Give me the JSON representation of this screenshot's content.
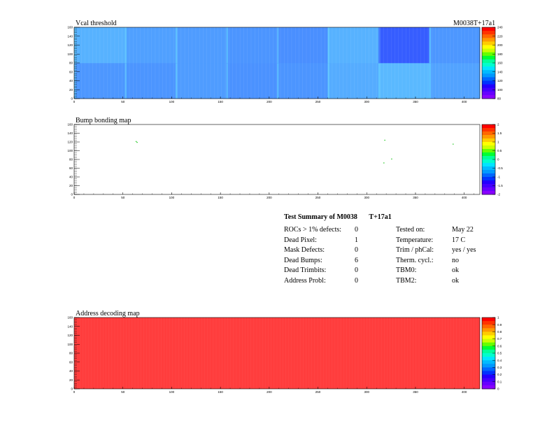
{
  "panels": [
    {
      "title": "Vcal threshold",
      "module_label": "M0038T+17a1",
      "chart_data": {
        "type": "heatmap",
        "x_range": [
          0,
          416
        ],
        "y_range": [
          0,
          160
        ],
        "x_ticks": [
          "0",
          "50",
          "100",
          "150",
          "200",
          "250",
          "300",
          "350",
          "400"
        ],
        "y_ticks": [
          "0",
          "20",
          "40",
          "60",
          "80",
          "100",
          "120",
          "140",
          "160"
        ],
        "z_range": [
          80,
          240
        ],
        "z_ticks": [
          "80",
          "100",
          "120",
          "140",
          "160",
          "180",
          "200",
          "220",
          "240"
        ],
        "roc_mean_top": [
          150,
          138,
          135,
          130,
          126,
          150,
          92,
          132
        ],
        "roc_mean_bottom": [
          132,
          130,
          135,
          128,
          130,
          146,
          155,
          140
        ],
        "colors": {
          "low": "#2f4bff",
          "high": "#60c8ff"
        }
      }
    },
    {
      "title": "Bump bonding map",
      "chart_data": {
        "type": "heatmap",
        "x_range": [
          0,
          416
        ],
        "y_range": [
          0,
          160
        ],
        "x_ticks": [
          "0",
          "50",
          "100",
          "150",
          "200",
          "250",
          "300",
          "350",
          "400"
        ],
        "y_ticks": [
          "0",
          "20",
          "40",
          "60",
          "80",
          "100",
          "120",
          "140",
          "160"
        ],
        "z_ticks": [
          "-2",
          "-1.5",
          "-1",
          "-0.5",
          "0",
          "0.5",
          "1",
          "1.5",
          "2"
        ],
        "points": [
          {
            "x": 63,
            "y": 122
          },
          {
            "x": 64,
            "y": 120
          },
          {
            "x": 318,
            "y": 125
          },
          {
            "x": 317,
            "y": 73
          },
          {
            "x": 325,
            "y": 82
          },
          {
            "x": 388,
            "y": 116
          }
        ]
      }
    },
    {
      "title": "Address decoding map",
      "chart_data": {
        "type": "heatmap",
        "x_range": [
          0,
          416
        ],
        "y_range": [
          0,
          160
        ],
        "x_ticks": [
          "0",
          "50",
          "100",
          "150",
          "200",
          "250",
          "300",
          "350",
          "400"
        ],
        "y_ticks": [
          "0",
          "20",
          "40",
          "60",
          "80",
          "100",
          "120",
          "140",
          "160"
        ],
        "z_ticks": [
          "0",
          "0.1",
          "0.2",
          "0.3",
          "0.4",
          "0.5",
          "0.6",
          "0.7",
          "0.8",
          "0.9",
          "1"
        ],
        "fill_value": 1,
        "colors": {
          "fill": "#ff3d3d"
        }
      }
    }
  ],
  "summary": {
    "title_left": "Test Summary of M0038",
    "title_right": "T+17a1",
    "left": [
      {
        "label": "ROCs > 1% defects:",
        "value": "0"
      },
      {
        "label": "Dead Pixel:",
        "value": "1"
      },
      {
        "label": "Mask Defects:",
        "value": "0"
      },
      {
        "label": "Dead Bumps:",
        "value": "6"
      },
      {
        "label": "Dead Trimbits:",
        "value": "0"
      },
      {
        "label": "Address Probl:",
        "value": "0"
      }
    ],
    "right": [
      {
        "label": "Tested on:",
        "value": "May 22"
      },
      {
        "label": "Temperature:",
        "value": "17 C"
      },
      {
        "label": "Trim / phCal:",
        "value": "yes / yes"
      },
      {
        "label": "Therm. cycl.:",
        "value": "no"
      },
      {
        "label": "TBM0:",
        "value": "ok"
      },
      {
        "label": "TBM2:",
        "value": "ok"
      }
    ]
  }
}
